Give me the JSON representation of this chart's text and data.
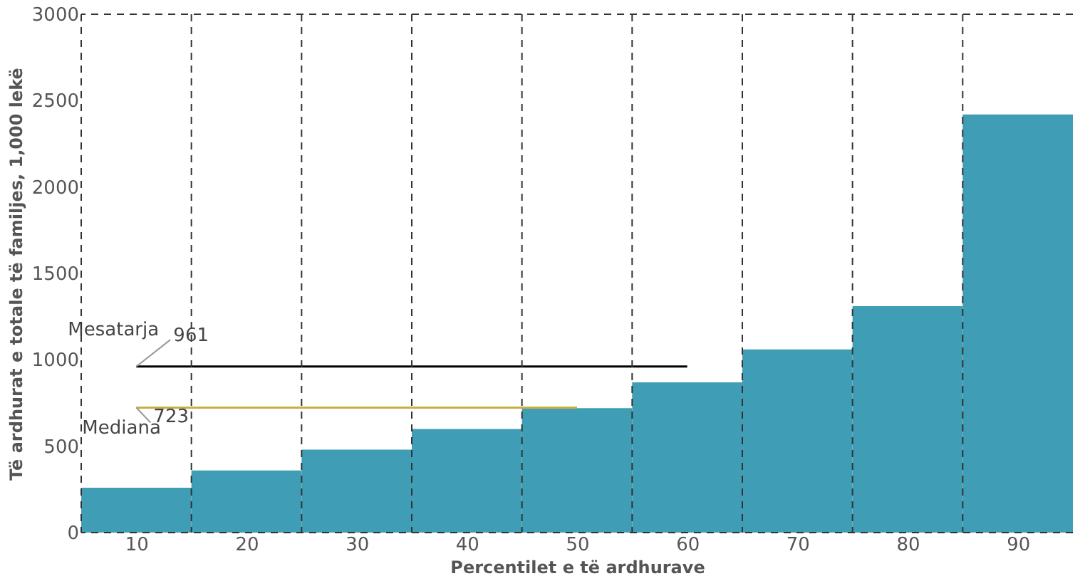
{
  "chart_data": {
    "type": "histogram",
    "xlabel": "Percentilet e të ardhurave",
    "ylabel": "Të ardhurat e totale të familjes, 1,000 lekë",
    "xlim": [
      5,
      95
    ],
    "xticks": [
      10,
      20,
      30,
      40,
      50,
      60,
      70,
      80,
      90
    ],
    "ylim": [
      0,
      3000
    ],
    "yticks": [
      0,
      500,
      1000,
      1500,
      2000,
      2500,
      3000
    ],
    "series": [
      {
        "color": "#3f9db5",
        "bins": [
          5,
          15,
          25,
          35,
          45,
          55,
          65,
          75,
          85,
          95
        ],
        "values": [
          260,
          360,
          480,
          600,
          720,
          870,
          1060,
          1310,
          2420
        ]
      },
      {
        "type": "line",
        "name": "Mesatarja",
        "color": "#000000",
        "x": [
          10,
          60
        ],
        "values": [
          961,
          961
        ]
      },
      {
        "type": "line",
        "name": "Mediana",
        "color": "#c8b040",
        "x": [
          10,
          50
        ],
        "values": [
          723,
          723
        ]
      }
    ],
    "annotations": [
      {
        "text": "961",
        "x": 10,
        "y": 961
      },
      {
        "text": "723",
        "x": 10,
        "y": 723
      }
    ],
    "ref_lines": [
      {
        "axis": "x",
        "value": 5,
        "line_style": "dashed"
      },
      {
        "axis": "x",
        "value": 15,
        "line_style": "dashed"
      },
      {
        "axis": "x",
        "value": 25,
        "line_style": "dashed"
      },
      {
        "axis": "x",
        "value": 35,
        "line_style": "dashed"
      },
      {
        "axis": "x",
        "value": 45,
        "line_style": "dashed"
      },
      {
        "axis": "x",
        "value": 55,
        "line_style": "dashed"
      },
      {
        "axis": "x",
        "value": 65,
        "line_style": "dashed"
      },
      {
        "axis": "x",
        "value": 75,
        "line_style": "dashed"
      },
      {
        "axis": "x",
        "value": 85,
        "line_style": "dashed"
      },
      {
        "axis": "y",
        "value": 3000,
        "line_style": "dashed"
      },
      {
        "axis": "y",
        "value": 0,
        "line_style": "dashed"
      }
    ]
  }
}
